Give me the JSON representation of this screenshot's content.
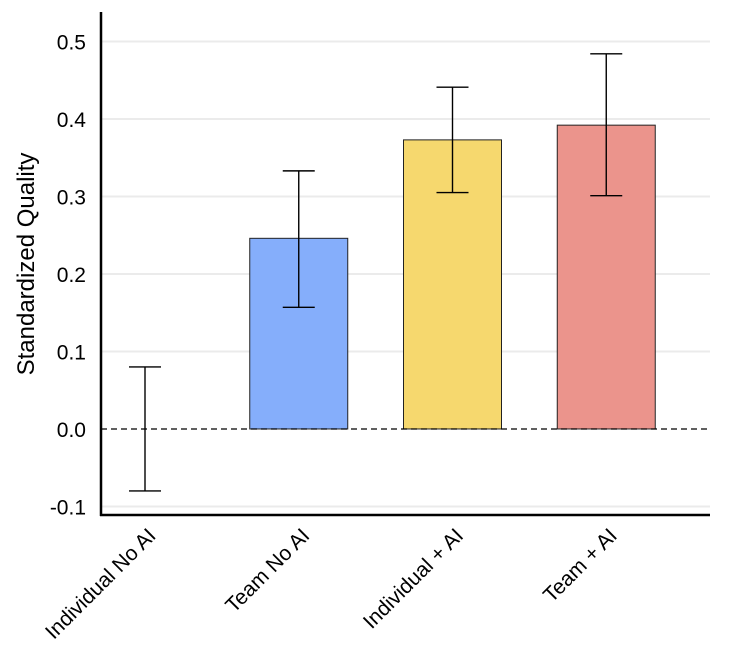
{
  "chart_data": {
    "type": "bar",
    "title": "",
    "xlabel": "",
    "ylabel": "Standardized Quality",
    "ylim": [
      -0.111,
      0.538
    ],
    "yticks": [
      -0.1,
      0.0,
      0.1,
      0.2,
      0.3,
      0.4,
      0.5
    ],
    "ytick_labels": [
      "-0.1",
      "0.0",
      "0.1",
      "0.2",
      "0.3",
      "0.4",
      "0.5"
    ],
    "grid": "horizontal",
    "reference_line": {
      "y": 0.0,
      "style": "dashed"
    },
    "categories": [
      "Individual No AI",
      "Team No AI",
      "Individual + AI",
      "Team + AI"
    ],
    "values": [
      0.0,
      0.246,
      0.373,
      0.392
    ],
    "ci_lower": [
      -0.08,
      0.157,
      0.305,
      0.301
    ],
    "ci_upper": [
      0.08,
      0.333,
      0.441,
      0.484
    ],
    "colors": [
      "#ffffff",
      "#85aefb",
      "#f6d86e",
      "#eb948c"
    ]
  }
}
